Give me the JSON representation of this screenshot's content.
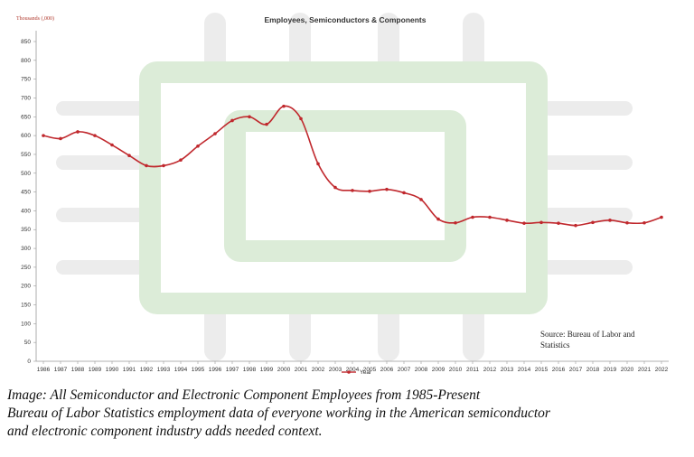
{
  "chart_data": {
    "type": "line",
    "title": "Employees, Semiconductors & Components",
    "ylabel": "Thousands (,000)",
    "xlabel": "",
    "ylim": [
      0,
      850
    ],
    "yticks": [
      0,
      50,
      100,
      150,
      200,
      250,
      300,
      350,
      400,
      450,
      500,
      550,
      600,
      650,
      700,
      750,
      800,
      850
    ],
    "grid": false,
    "legend_position": "bottom",
    "categories": [
      "1986",
      "1987",
      "1988",
      "1989",
      "1990",
      "1991",
      "1992",
      "1993",
      "1994",
      "1995",
      "1996",
      "1997",
      "1998",
      "1999",
      "2000",
      "2001",
      "2002",
      "2003",
      "2004",
      "2005",
      "2006",
      "2007",
      "2008",
      "2009",
      "2010",
      "2011",
      "2012",
      "2013",
      "2014",
      "2015",
      "2016",
      "2017",
      "2018",
      "2019",
      "2020",
      "2021",
      "2022"
    ],
    "series": [
      {
        "name": "Year",
        "color": "#c0282d",
        "values": [
          600,
          592,
          610,
          600,
          575,
          547,
          520,
          520,
          535,
          572,
          605,
          640,
          650,
          630,
          678,
          645,
          525,
          462,
          454,
          452,
          457,
          448,
          430,
          378,
          368,
          383,
          383,
          375,
          367,
          369,
          367,
          361,
          369,
          375,
          368,
          368,
          383
        ]
      }
    ],
    "annotation": "Source: Bureau of Labor and Statistics",
    "background_motif": "chip-outline",
    "background_colors": {
      "chip": "#dcecd8",
      "pins": "#ececec"
    }
  },
  "caption": {
    "line1": "Image: All Semiconductor and Electronic Component Employees from 1985-Present",
    "line2": "Bureau of Labor Statistics employment data of everyone working in the American semiconductor",
    "line3": "and electronic component industry adds needed context."
  }
}
